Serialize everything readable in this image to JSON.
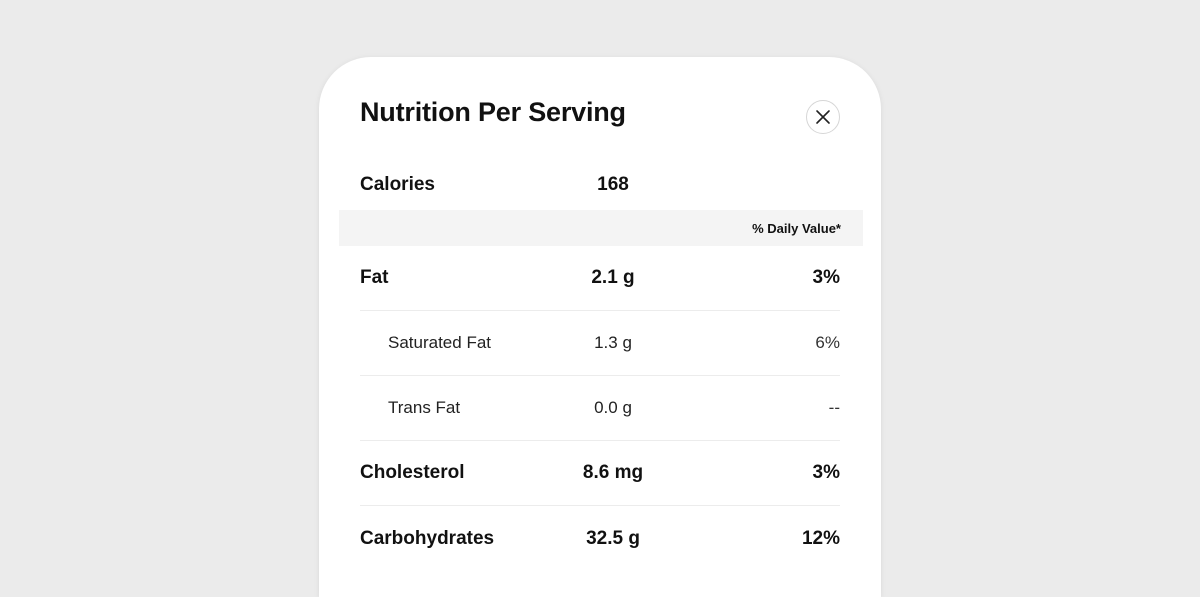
{
  "modal": {
    "title": "Nutrition Per Serving",
    "close_icon": "close-icon"
  },
  "calories": {
    "label": "Calories",
    "value": "168"
  },
  "daily_value_header": "% Daily Value*",
  "nutrients": [
    {
      "name": "Fat",
      "amount": "2.1 g",
      "dv": "3%",
      "level": "main"
    },
    {
      "name": "Saturated Fat",
      "amount": "1.3 g",
      "dv": "6%",
      "level": "sub"
    },
    {
      "name": "Trans Fat",
      "amount": "0.0 g",
      "dv": "--",
      "level": "sub"
    },
    {
      "name": "Cholesterol",
      "amount": "8.6 mg",
      "dv": "3%",
      "level": "main"
    },
    {
      "name": "Carbohydrates",
      "amount": "32.5 g",
      "dv": "12%",
      "level": "main"
    }
  ]
}
